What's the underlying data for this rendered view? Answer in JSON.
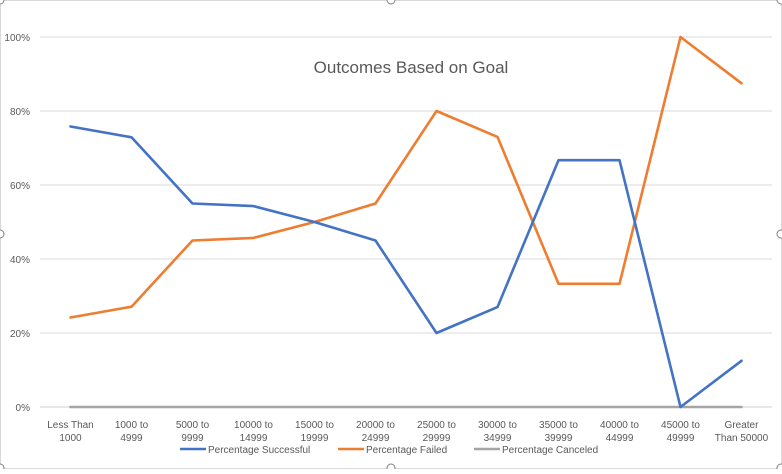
{
  "chart_data": {
    "type": "line",
    "title": "Outcomes Based on Goal",
    "xlabel": "",
    "ylabel": "",
    "categories": [
      [
        "Less Than",
        "1000"
      ],
      [
        "1000 to",
        "4999"
      ],
      [
        "5000 to",
        "9999"
      ],
      [
        "10000 to",
        "14999"
      ],
      [
        "15000 to",
        "19999"
      ],
      [
        "20000 to",
        "24999"
      ],
      [
        "25000 to",
        "29999"
      ],
      [
        "30000 to",
        "34999"
      ],
      [
        "35000 to",
        "39999"
      ],
      [
        "40000 to",
        "44999"
      ],
      [
        "45000 to",
        "49999"
      ],
      [
        "Greater",
        "Than 50000"
      ]
    ],
    "ylim": [
      0,
      100
    ],
    "yticks": [
      0,
      20,
      40,
      60,
      80,
      100
    ],
    "ytick_labels": [
      "0%",
      "20%",
      "40%",
      "60%",
      "80%",
      "100%"
    ],
    "grid": true,
    "legend_position": "bottom",
    "series": [
      {
        "name": "Percentage Successful",
        "color": "#4472C4",
        "values": [
          75.8,
          72.9,
          55.0,
          54.3,
          50.0,
          45.0,
          20.0,
          27.0,
          66.7,
          66.7,
          0.0,
          12.5
        ]
      },
      {
        "name": "Percentage Failed",
        "color": "#ED7D31",
        "values": [
          24.2,
          27.1,
          45.0,
          45.7,
          50.0,
          55.0,
          80.0,
          73.0,
          33.3,
          33.3,
          100.0,
          87.5
        ]
      },
      {
        "name": "Percentage Canceled",
        "color": "#A5A5A5",
        "values": [
          0,
          0,
          0,
          0,
          0,
          0,
          0,
          0,
          0,
          0,
          0,
          0
        ]
      }
    ]
  }
}
